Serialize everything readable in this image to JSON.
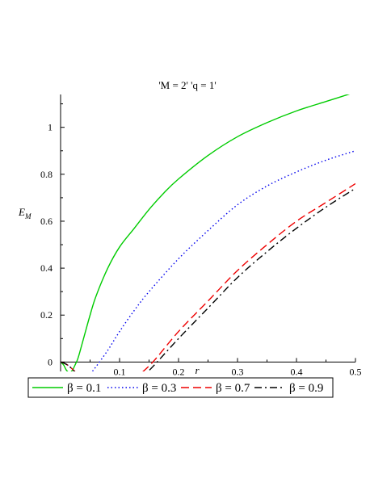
{
  "chart_data": {
    "type": "line",
    "title": "'M = 2' 'q = 1'",
    "xlabel": "r",
    "ylabel": "E_M",
    "xlim": [
      0,
      0.5
    ],
    "ylim": [
      -0.04,
      1.14
    ],
    "x_ticks": [
      "0.1",
      "0.2",
      "0.3",
      "0.4",
      "0.5"
    ],
    "y_ticks": [
      "0",
      "0.2",
      "0.4",
      "0.6",
      "0.8",
      "1"
    ],
    "grid": false,
    "legend_placement": "bottom",
    "series": [
      {
        "name": "β = 0.1",
        "color": "#00cc00",
        "dash": "solid",
        "x": [
          0.0,
          0.005,
          0.01,
          0.015,
          0.02,
          0.025,
          0.03,
          0.04,
          0.05,
          0.06,
          0.08,
          0.1,
          0.125,
          0.15,
          0.175,
          0.2,
          0.25,
          0.3,
          0.35,
          0.4,
          0.45,
          0.5
        ],
        "y": [
          0.0,
          -0.012,
          -0.035,
          -0.045,
          -0.035,
          -0.01,
          0.02,
          0.11,
          0.2,
          0.28,
          0.4,
          0.49,
          0.57,
          0.65,
          0.72,
          0.78,
          0.88,
          0.96,
          1.02,
          1.07,
          1.11,
          1.15
        ]
      },
      {
        "name": "β = 0.3",
        "color": "#0000ee",
        "dash": "dot",
        "x": [
          0.0,
          0.01,
          0.02,
          0.03,
          0.04,
          0.05,
          0.06,
          0.08,
          0.1,
          0.125,
          0.15,
          0.2,
          0.25,
          0.3,
          0.35,
          0.4,
          0.45,
          0.5
        ],
        "y": [
          0.0,
          -0.01,
          -0.03,
          -0.055,
          -0.068,
          -0.05,
          -0.02,
          0.05,
          0.13,
          0.22,
          0.3,
          0.44,
          0.56,
          0.67,
          0.75,
          0.81,
          0.86,
          0.9
        ]
      },
      {
        "name": "β = 0.7",
        "color": "#ee0000",
        "dash": "dash",
        "x": [
          0.0,
          0.01,
          0.02,
          0.03,
          0.05,
          0.07,
          0.08,
          0.1,
          0.12,
          0.14,
          0.16,
          0.2,
          0.25,
          0.3,
          0.35,
          0.4,
          0.45,
          0.5
        ],
        "y": [
          0.0,
          -0.01,
          -0.03,
          -0.055,
          -0.1,
          -0.12,
          -0.122,
          -0.11,
          -0.08,
          -0.04,
          0.01,
          0.13,
          0.26,
          0.39,
          0.5,
          0.6,
          0.68,
          0.76
        ]
      },
      {
        "name": "β = 0.9",
        "color": "#000000",
        "dash": "dashdot",
        "x": [
          0.0,
          0.01,
          0.02,
          0.03,
          0.05,
          0.07,
          0.085,
          0.1,
          0.12,
          0.14,
          0.16,
          0.2,
          0.25,
          0.3,
          0.35,
          0.4,
          0.45,
          0.5
        ],
        "y": [
          0.0,
          -0.01,
          -0.03,
          -0.06,
          -0.105,
          -0.13,
          -0.135,
          -0.125,
          -0.1,
          -0.06,
          -0.01,
          0.1,
          0.23,
          0.36,
          0.47,
          0.57,
          0.66,
          0.74
        ]
      }
    ]
  }
}
